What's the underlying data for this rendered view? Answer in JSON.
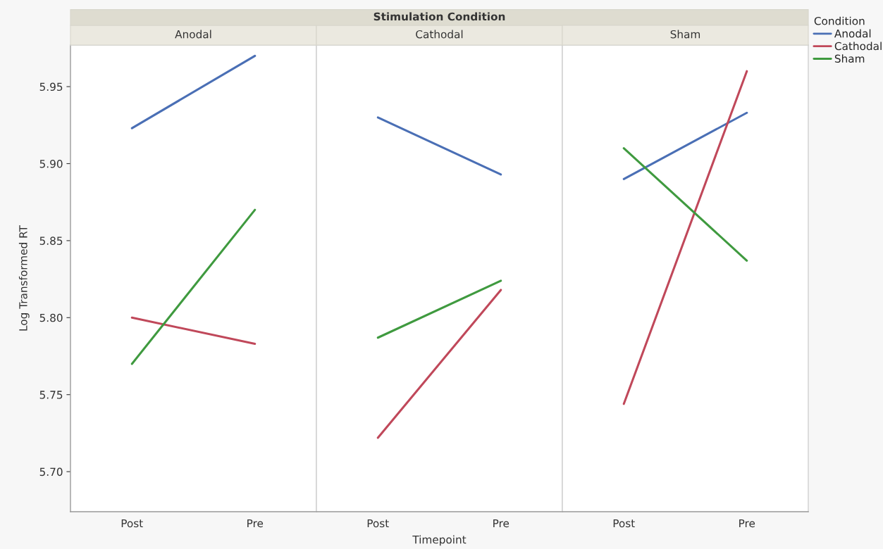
{
  "chart_data": [
    {
      "type": "line",
      "subtitle": "Anodal",
      "ylabel": "Log Transformed RT",
      "categories": [
        "Post",
        "Pre"
      ],
      "ylim": [
        5.674,
        5.977
      ],
      "yticks": [
        {
          "value": 5.7,
          "label": "5.70"
        },
        5.75,
        {
          "value": 5.8,
          "label": "5.80"
        },
        5.85,
        {
          "value": 5.9,
          "label": "5.90"
        },
        5.95
      ],
      "grid": false,
      "tick_labels": "xy",
      "series": [
        {
          "color": "#4a6fb5",
          "values": [
            5.923,
            5.97
          ]
        },
        {
          "color": "#c0485a",
          "values": [
            5.8,
            5.783
          ]
        },
        {
          "color": "#3f9a3f",
          "values": [
            5.77,
            5.87
          ]
        }
      ]
    },
    {
      "type": "line",
      "title": "Stimulation Condition",
      "subtitle": "Cathodal",
      "xlabel": "Timepoint",
      "categories": [
        "Post",
        "Pre"
      ],
      "ylim": [
        5.674,
        5.977
      ],
      "grid": false,
      "tick_labels": "x",
      "series": [
        {
          "color": "#4a6fb5",
          "values": [
            5.93,
            5.893
          ]
        },
        {
          "color": "#c0485a",
          "values": [
            5.722,
            5.818
          ]
        },
        {
          "color": "#3f9a3f",
          "values": [
            5.787,
            5.824
          ]
        }
      ]
    },
    {
      "type": "line",
      "subtitle": "Sham",
      "categories": [
        "Post",
        "Pre"
      ],
      "ylim": [
        5.674,
        5.977
      ],
      "grid": false,
      "legend": "right",
      "legend_title": "Condition",
      "tick_labels": "x",
      "series": [
        {
          "name": "Anodal",
          "color": "#4a6fb5",
          "values": [
            5.89,
            5.933
          ]
        },
        {
          "name": "Cathodal",
          "color": "#c0485a",
          "values": [
            5.744,
            5.96
          ]
        },
        {
          "name": "Sham",
          "color": "#3f9a3f",
          "values": [
            5.91,
            5.837
          ]
        }
      ]
    }
  ]
}
